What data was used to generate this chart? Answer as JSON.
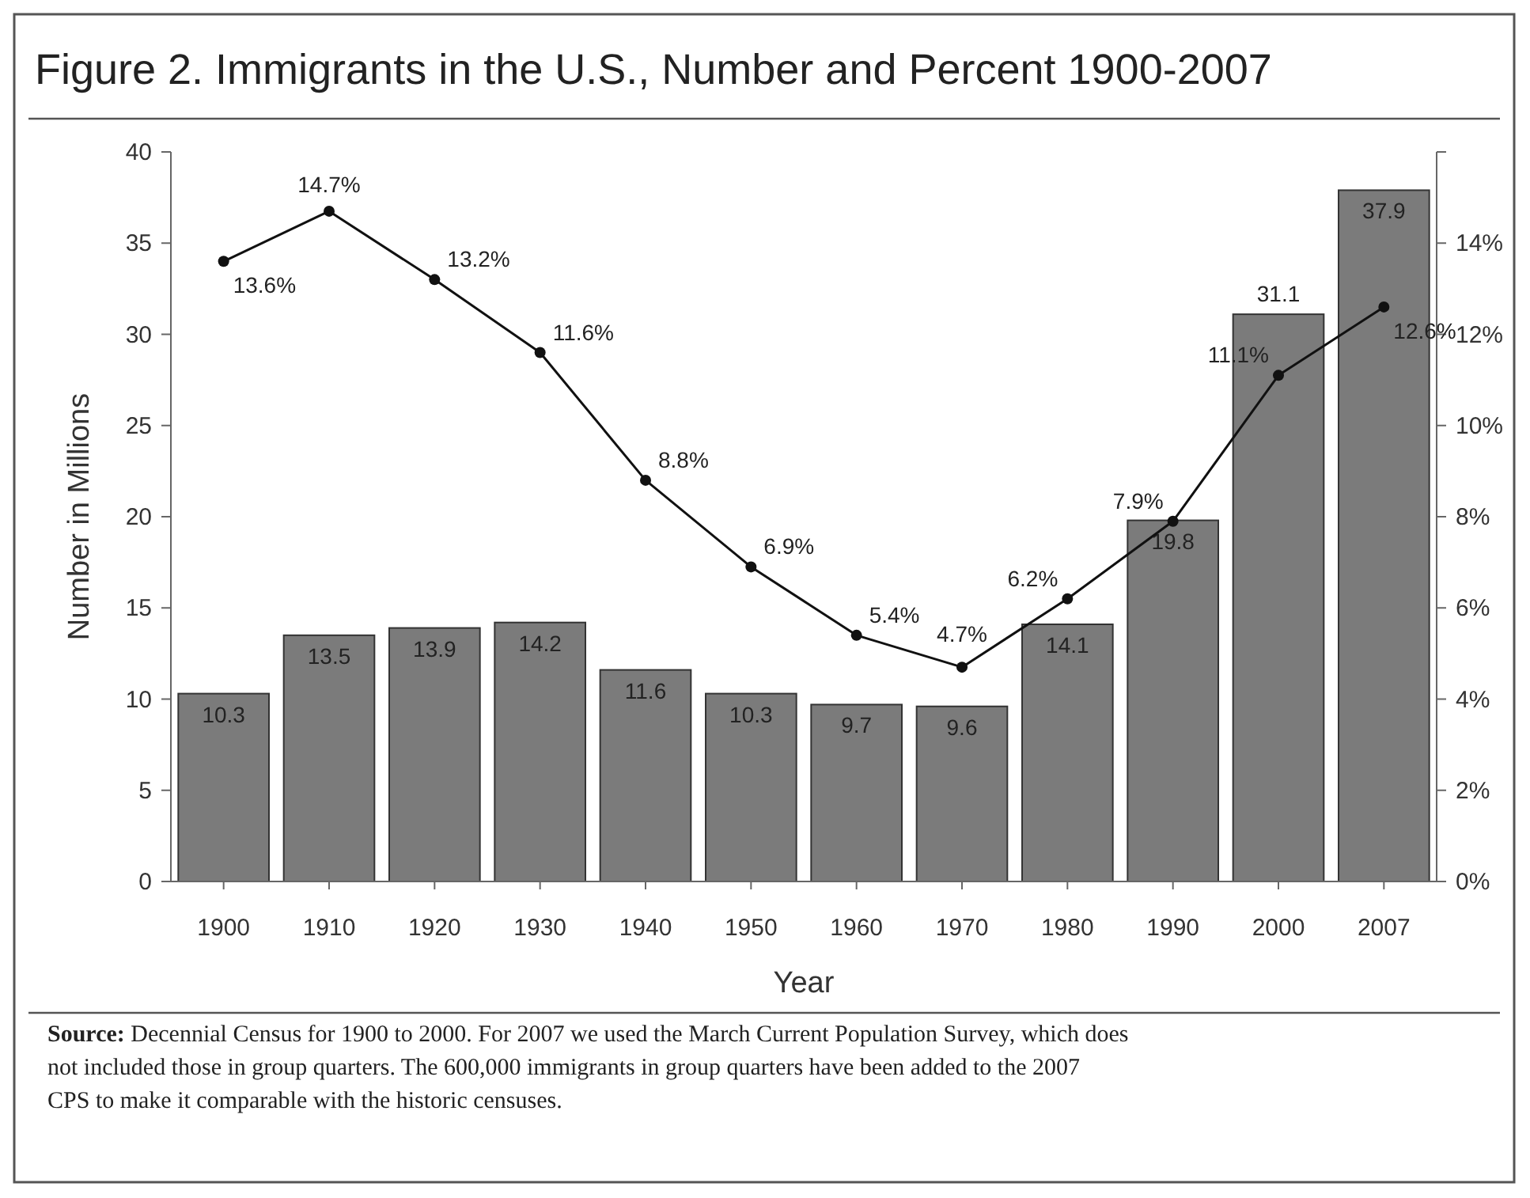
{
  "chart_data": {
    "type": "bar",
    "title": "Figure 2. Immigrants in the U.S., Number and Percent 1900-2007",
    "xlabel": "Year",
    "ylabel": "Number in Millions",
    "categories": [
      "1900",
      "1910",
      "1920",
      "1930",
      "1940",
      "1950",
      "1960",
      "1970",
      "1980",
      "1990",
      "2000",
      "2007"
    ],
    "series": [
      {
        "color": "#7b7b7b",
        "values": [
          10.3,
          13.5,
          13.9,
          14.2,
          11.6,
          10.3,
          9.7,
          9.6,
          14.1,
          19.8,
          31.1,
          37.9
        ],
        "value_labels": [
          "10.3",
          "13.5",
          "13.9",
          "14.2",
          "11.6",
          "10.3",
          "9.7",
          "9.6",
          "14.1",
          "19.8",
          "31.1",
          "37.9"
        ]
      },
      {
        "type": "line",
        "axis": "y2",
        "color": "#111111",
        "marker": "circle",
        "values": [
          13.6,
          14.7,
          13.2,
          11.6,
          8.8,
          6.9,
          5.4,
          4.7,
          6.2,
          7.9,
          11.1,
          12.6
        ],
        "value_labels": [
          "13.6%",
          "14.7%",
          "13.2%",
          "11.6%",
          "8.8%",
          "6.9%",
          "5.4%",
          "4.7%",
          "6.2%",
          "7.9%",
          "11.1%",
          "12.6%"
        ]
      }
    ],
    "ylim": [
      0,
      40
    ],
    "yticks": [
      0,
      5,
      10,
      15,
      20,
      25,
      30,
      35,
      40
    ],
    "y2lim": [
      0,
      16
    ],
    "y2ticks": [
      {
        "value": 0,
        "label": "0%"
      },
      {
        "value": 2,
        "label": "2%"
      },
      {
        "value": 4,
        "label": "4%"
      },
      {
        "value": 6,
        "label": "6%"
      },
      {
        "value": 8,
        "label": "8%"
      },
      {
        "value": 10,
        "label": "10%"
      },
      {
        "value": 12,
        "label": "12%"
      },
      {
        "value": 14,
        "label": "14%"
      },
      {
        "value": 16,
        "label": null
      }
    ],
    "grid": false,
    "annotations": [
      "Source: Decennial Census for 1900 to 2000.  For 2007 we used the March Current Population Survey, which does not included those in group quarters.  The 600,000 immigrants in group quarters have been added to the 2007 CPS to make it  comparable with the historic censuses."
    ]
  }
}
